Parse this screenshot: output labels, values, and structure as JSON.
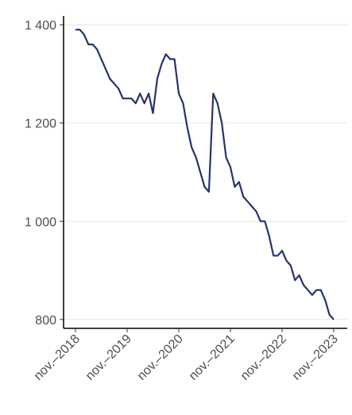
{
  "chart_data": {
    "type": "line",
    "x": [
      "2018-11",
      "2018-12",
      "2019-01",
      "2019-02",
      "2019-03",
      "2019-04",
      "2019-05",
      "2019-06",
      "2019-07",
      "2019-08",
      "2019-09",
      "2019-10",
      "2019-11",
      "2019-12",
      "2020-01",
      "2020-02",
      "2020-03",
      "2020-04",
      "2020-05",
      "2020-06",
      "2020-07",
      "2020-08",
      "2020-09",
      "2020-10",
      "2020-11",
      "2020-12",
      "2021-01",
      "2021-02",
      "2021-03",
      "2021-04",
      "2021-05",
      "2021-06",
      "2021-07",
      "2021-08",
      "2021-09",
      "2021-10",
      "2021-11",
      "2021-12",
      "2022-01",
      "2022-02",
      "2022-03",
      "2022-04",
      "2022-05",
      "2022-06",
      "2022-07",
      "2022-08",
      "2022-09",
      "2022-10",
      "2022-11",
      "2022-12",
      "2023-01",
      "2023-02",
      "2023-03",
      "2023-04",
      "2023-05",
      "2023-06",
      "2023-07",
      "2023-08",
      "2023-09",
      "2023-10",
      "2023-11"
    ],
    "series": [
      {
        "color": "#27336b",
        "values": [
          1390,
          1390,
          1380,
          1360,
          1360,
          1350,
          1330,
          1310,
          1290,
          1280,
          1270,
          1250,
          1250,
          1250,
          1240,
          1260,
          1240,
          1260,
          1220,
          1290,
          1320,
          1340,
          1330,
          1330,
          1260,
          1240,
          1190,
          1150,
          1130,
          1100,
          1070,
          1060,
          1260,
          1240,
          1200,
          1130,
          1110,
          1070,
          1080,
          1050,
          1040,
          1030,
          1020,
          1000,
          1000,
          970,
          930,
          930,
          940,
          920,
          910,
          880,
          890,
          870,
          860,
          850,
          860,
          860,
          840,
          810,
          800
        ]
      }
    ],
    "ylim": [
      782,
      1418
    ],
    "yticks": [
      {
        "value": 800,
        "label": "800"
      },
      {
        "value": 1000,
        "label": "1 000"
      },
      {
        "value": 1200,
        "label": "1 200"
      },
      {
        "value": 1400,
        "label": "1 400"
      }
    ],
    "xticks": [
      {
        "value": "2018-11",
        "label": "nov.–2018"
      },
      {
        "value": "2019-11",
        "label": "nov.–2019"
      },
      {
        "value": "2020-11",
        "label": "nov.–2020"
      },
      {
        "value": "2021-11",
        "label": "nov.–2021"
      },
      {
        "value": "2022-11",
        "label": "nov.–2022"
      },
      {
        "value": "2023-11",
        "label": "nov.–2023"
      }
    ],
    "grid": true
  }
}
